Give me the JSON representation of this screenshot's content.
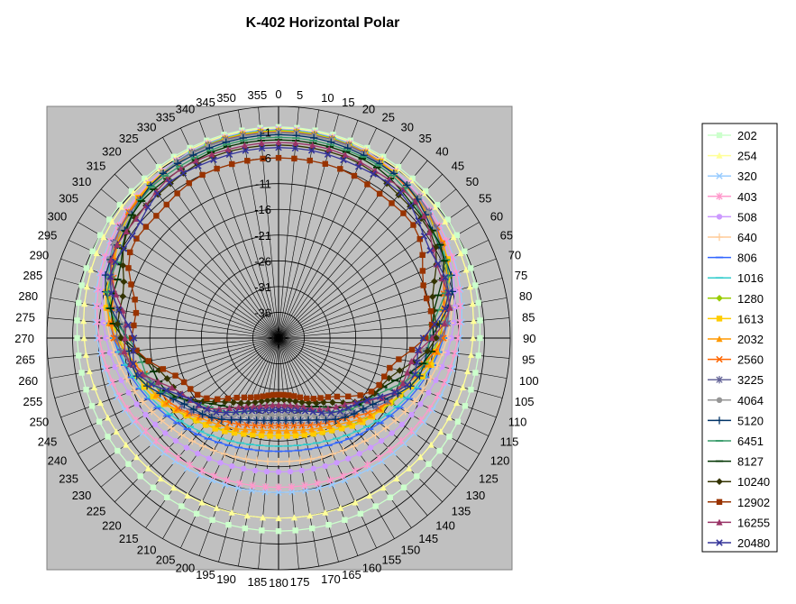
{
  "chart_data": {
    "type": "polar",
    "title": "K-402 Horizontal Polar",
    "angle_ticks": [
      "0",
      "5",
      "10",
      "15",
      "20",
      "25",
      "30",
      "35",
      "40",
      "45",
      "50",
      "55",
      "60",
      "65",
      "70",
      "75",
      "80",
      "85",
      "90",
      "95",
      "100",
      "105",
      "110",
      "115",
      "120",
      "125",
      "130",
      "135",
      "140",
      "145",
      "150",
      "155",
      "160",
      "165",
      "170",
      "175",
      "180",
      "185",
      "190",
      "195",
      "200",
      "205",
      "210",
      "215",
      "220",
      "225",
      "230",
      "235",
      "240",
      "245",
      "250",
      "255",
      "260",
      "265",
      "270",
      "275",
      "280",
      "285",
      "290",
      "295",
      "300",
      "305",
      "310",
      "315",
      "320",
      "325",
      "330",
      "335",
      "340",
      "345",
      "350",
      "355"
    ],
    "radial_ticks": [
      "-1",
      "-6",
      "-11",
      "-16",
      "-21",
      "-26",
      "-31",
      "-36"
    ],
    "radial_range": [
      -41,
      4
    ],
    "grid": true,
    "legend_position": "right",
    "series": [
      {
        "name": "202",
        "color": "#ccffcc",
        "marker": "square",
        "front_loss": 0.0,
        "back_loss": 3.5
      },
      {
        "name": "254",
        "color": "#ffff99",
        "marker": "triangle",
        "front_loss": 0.2,
        "back_loss": 6.0
      },
      {
        "name": "320",
        "color": "#99ccff",
        "marker": "x",
        "front_loss": 0.4,
        "back_loss": 11.0
      },
      {
        "name": "403",
        "color": "#ff99cc",
        "marker": "star",
        "front_loss": 0.5,
        "back_loss": 12.0
      },
      {
        "name": "508",
        "color": "#cc99ff",
        "marker": "circle",
        "front_loss": 0.5,
        "back_loss": 15.0
      },
      {
        "name": "640",
        "color": "#ffcc99",
        "marker": "plus",
        "front_loss": 0.6,
        "back_loss": 17.0
      },
      {
        "name": "806",
        "color": "#3366ff",
        "marker": "dash",
        "front_loss": 0.6,
        "back_loss": 19.0
      },
      {
        "name": "1016",
        "color": "#33cccc",
        "marker": "dash",
        "front_loss": 0.6,
        "back_loss": 20.0
      },
      {
        "name": "1280",
        "color": "#99cc00",
        "marker": "diamond",
        "front_loss": 0.7,
        "back_loss": 22.0
      },
      {
        "name": "1613",
        "color": "#ffcc00",
        "marker": "square",
        "front_loss": 0.8,
        "back_loss": 22.0
      },
      {
        "name": "2032",
        "color": "#ff9900",
        "marker": "triangle",
        "front_loss": 0.9,
        "back_loss": 23.0
      },
      {
        "name": "2560",
        "color": "#ff6600",
        "marker": "x",
        "front_loss": 1.0,
        "back_loss": 24.0
      },
      {
        "name": "3225",
        "color": "#666699",
        "marker": "star",
        "front_loss": 1.0,
        "back_loss": 25.0
      },
      {
        "name": "4064",
        "color": "#969696",
        "marker": "circle",
        "front_loss": 1.2,
        "back_loss": 26.0
      },
      {
        "name": "5120",
        "color": "#003366",
        "marker": "plus",
        "front_loss": 1.5,
        "back_loss": 25.0
      },
      {
        "name": "6451",
        "color": "#339966",
        "marker": "dash",
        "front_loss": 2.0,
        "back_loss": 27.0
      },
      {
        "name": "8127",
        "color": "#003300",
        "marker": "dash",
        "front_loss": 2.5,
        "back_loss": 28.0
      },
      {
        "name": "10240",
        "color": "#333300",
        "marker": "diamond",
        "front_loss": 3.5,
        "back_loss": 29.0
      },
      {
        "name": "12902",
        "color": "#993300",
        "marker": "square",
        "front_loss": 6.0,
        "back_loss": 30.0
      },
      {
        "name": "16255",
        "color": "#993366",
        "marker": "triangle",
        "front_loss": 3.0,
        "back_loss": 28.0
      },
      {
        "name": "20480",
        "color": "#333399",
        "marker": "x",
        "front_loss": 4.0,
        "back_loss": 27.0
      }
    ]
  }
}
